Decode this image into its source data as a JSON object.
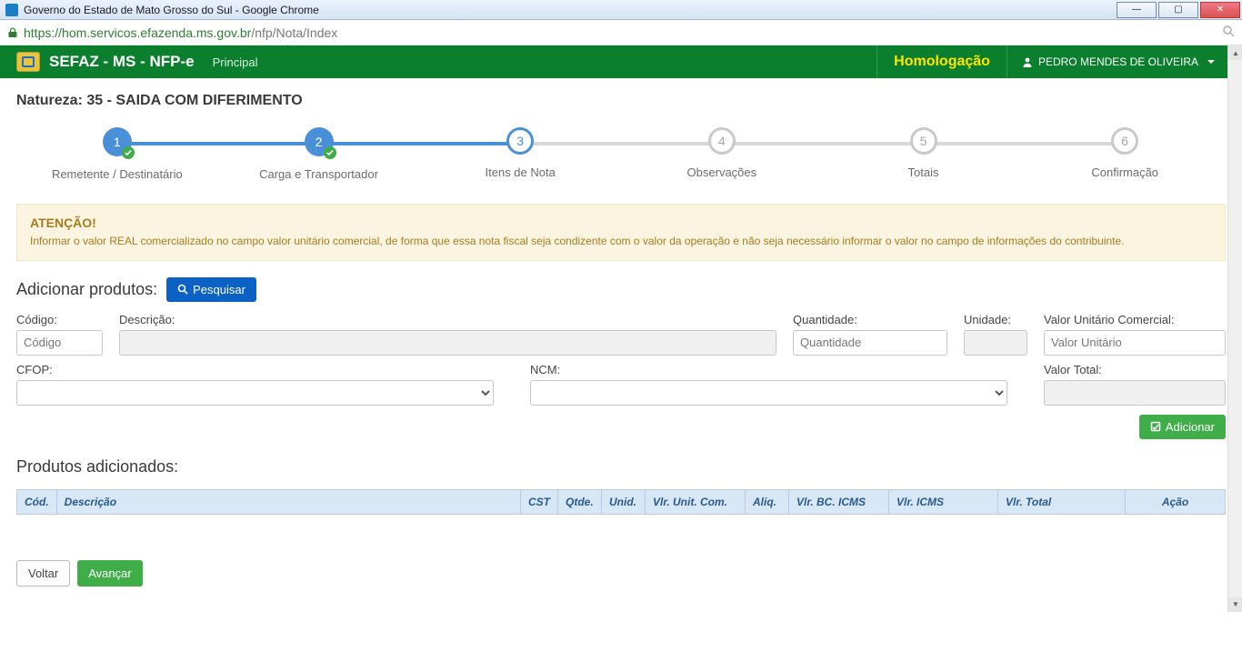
{
  "window": {
    "title": "Governo do Estado de Mato Grosso do Sul - Google Chrome"
  },
  "addressbar": {
    "scheme": "https",
    "host": "://hom.servicos.efazenda.ms.gov.br",
    "path": "/nfp/Nota/Index"
  },
  "topnav": {
    "brand": "SEFAZ - MS - NFP-e",
    "link_principal": "Principal",
    "env_badge": "Homologação",
    "user_name": "PEDRO MENDES DE OLIVEIRA"
  },
  "page": {
    "nature_title": "Natureza: 35 - SAIDA COM DIFERIMENTO"
  },
  "wizard": {
    "steps": [
      {
        "num": "1",
        "label": "Remetente / Destinatário",
        "state": "done"
      },
      {
        "num": "2",
        "label": "Carga e Transportador",
        "state": "done"
      },
      {
        "num": "3",
        "label": "Itens de Nota",
        "state": "cur"
      },
      {
        "num": "4",
        "label": "Observações",
        "state": "todo"
      },
      {
        "num": "5",
        "label": "Totais",
        "state": "todo"
      },
      {
        "num": "6",
        "label": "Confirmação",
        "state": "todo"
      }
    ]
  },
  "alert": {
    "title": "ATENÇÃO!",
    "text": "Informar o valor REAL comercializado no campo valor unitário comercial, de forma que essa nota fiscal seja condizente com o valor da operação e não seja necessário informar o valor no campo de informações do contribuinte."
  },
  "add_section": {
    "title": "Adicionar produtos:",
    "search_btn": "Pesquisar",
    "labels": {
      "codigo": "Código:",
      "descricao": "Descrição:",
      "quantidade": "Quantidade:",
      "unidade": "Unidade:",
      "valor_unit": "Valor Unitário Comercial:",
      "cfop": "CFOP:",
      "ncm": "NCM:",
      "valor_total": "Valor Total:"
    },
    "placeholders": {
      "codigo": "Código",
      "quantidade": "Quantidade",
      "valor_unit": "Valor Unitário"
    },
    "add_btn": "Adicionar"
  },
  "added_section": {
    "title": "Produtos adicionados:",
    "columns": {
      "cod": "Cód.",
      "descricao": "Descrição",
      "cst": "CST",
      "qtde": "Qtde.",
      "unid": "Unid.",
      "vlr_unit": "Vlr. Unit. Com.",
      "aliq": "Aliq.",
      "vlr_bc": "Vlr. BC. ICMS",
      "vlr_icms": "Vlr. ICMS",
      "vlr_total": "Vlr. Total",
      "acao": "Ação"
    }
  },
  "nav_buttons": {
    "back": "Voltar",
    "next": "Avançar"
  },
  "colors": {
    "brand_green": "#0b7f2e",
    "accent_blue": "#4a90d9",
    "btn_blue": "#0b62c4",
    "btn_green": "#3fae49",
    "warn_bg": "#fbf4e0",
    "warn_text": "#a67c1f",
    "table_header_bg": "#d7e7f5",
    "table_header_text": "#2a5a8c",
    "homolog_yellow": "#ffe600"
  }
}
